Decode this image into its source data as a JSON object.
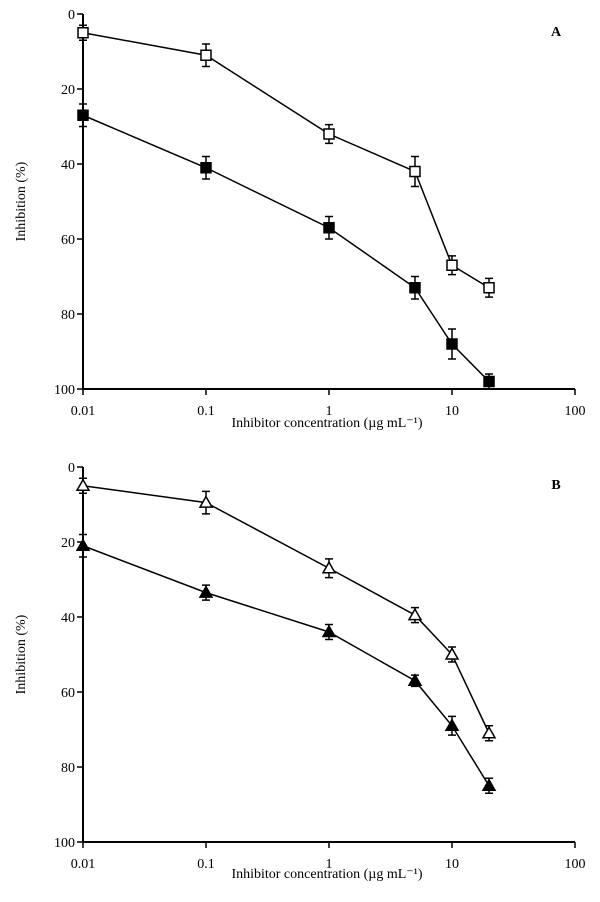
{
  "chart_data": [
    {
      "type": "scatter",
      "panel_label": "A",
      "xlabel": "Inhibitor concentration (µg mL⁻¹)",
      "ylabel": "Inhibition (%)",
      "xscale": "log",
      "xlim": [
        0.01,
        100
      ],
      "ylim": [
        0,
        100
      ],
      "y_inverted": true,
      "grid": false,
      "x_ticks": [
        "0.01",
        "0.1",
        "1",
        "10",
        "100"
      ],
      "y_ticks": [
        "0",
        "20",
        "40",
        "60",
        "80",
        "100"
      ],
      "series": [
        {
          "marker": "open-square",
          "points": [
            {
              "x": 0.01,
              "y": 5,
              "err": 2
            },
            {
              "x": 0.1,
              "y": 11,
              "err": 3
            },
            {
              "x": 1,
              "y": 32,
              "err": 2.5
            },
            {
              "x": 5,
              "y": 42,
              "err": 4
            },
            {
              "x": 10,
              "y": 67,
              "err": 2.5
            },
            {
              "x": 20,
              "y": 73,
              "err": 2.5
            }
          ]
        },
        {
          "marker": "filled-square",
          "points": [
            {
              "x": 0.01,
              "y": 27,
              "err": 3
            },
            {
              "x": 0.1,
              "y": 41,
              "err": 3
            },
            {
              "x": 1,
              "y": 57,
              "err": 3
            },
            {
              "x": 5,
              "y": 73,
              "err": 3
            },
            {
              "x": 10,
              "y": 88,
              "err": 4
            },
            {
              "x": 20,
              "y": 98,
              "err": 2
            }
          ]
        }
      ]
    },
    {
      "type": "scatter",
      "panel_label": "B",
      "xlabel": "Inhibitor concentration (µg mL⁻¹)",
      "ylabel": "Inhibition (%)",
      "xscale": "log",
      "xlim": [
        0.01,
        100
      ],
      "ylim": [
        0,
        100
      ],
      "y_inverted": true,
      "grid": false,
      "x_ticks": [
        "0.01",
        "0.1",
        "1",
        "10",
        "100"
      ],
      "y_ticks": [
        "0",
        "20",
        "40",
        "60",
        "80",
        "100"
      ],
      "series": [
        {
          "marker": "open-triangle",
          "points": [
            {
              "x": 0.01,
              "y": 5,
              "err": 2
            },
            {
              "x": 0.1,
              "y": 9.5,
              "err": 3
            },
            {
              "x": 1,
              "y": 27,
              "err": 2.5
            },
            {
              "x": 5,
              "y": 39.5,
              "err": 2
            },
            {
              "x": 10,
              "y": 50,
              "err": 2
            },
            {
              "x": 20,
              "y": 71,
              "err": 2
            }
          ]
        },
        {
          "marker": "filled-triangle",
          "points": [
            {
              "x": 0.01,
              "y": 21,
              "err": 3
            },
            {
              "x": 0.1,
              "y": 33.5,
              "err": 2
            },
            {
              "x": 1,
              "y": 44,
              "err": 2
            },
            {
              "x": 5,
              "y": 57,
              "err": 1.5
            },
            {
              "x": 10,
              "y": 69,
              "err": 2.5
            },
            {
              "x": 20,
              "y": 85,
              "err": 2
            }
          ]
        }
      ]
    }
  ]
}
